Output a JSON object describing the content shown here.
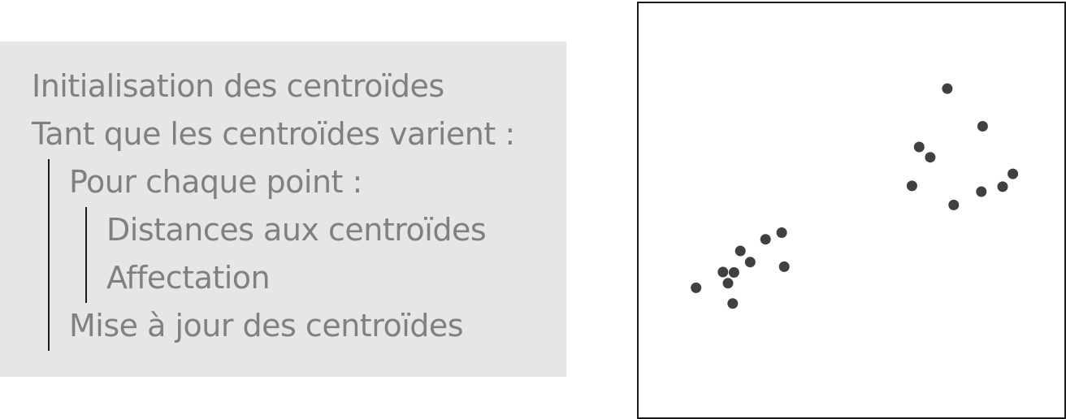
{
  "algorithm": {
    "lines": [
      "Initialisation des centroïdes",
      "Tant que les centroïdes varient :",
      "Pour chaque point :",
      "Distances aux centroïdes",
      "Affectation",
      "Mise à jour des centroïdes"
    ]
  },
  "colors": {
    "box_background": "#e6e6e6",
    "text": "#808080",
    "points": "#404040"
  },
  "chart_data": {
    "type": "scatter",
    "xlim": [
      0,
      100
    ],
    "ylim": [
      0,
      100
    ],
    "grid": false,
    "points": [
      {
        "x": 72.5,
        "y": 79.4
      },
      {
        "x": 80.8,
        "y": 70.3
      },
      {
        "x": 65.9,
        "y": 65.3
      },
      {
        "x": 68.5,
        "y": 62.8
      },
      {
        "x": 87.9,
        "y": 58.8
      },
      {
        "x": 64.2,
        "y": 55.9
      },
      {
        "x": 85.5,
        "y": 55.7
      },
      {
        "x": 80.5,
        "y": 54.5
      },
      {
        "x": 74.0,
        "y": 51.3
      },
      {
        "x": 33.6,
        "y": 44.6
      },
      {
        "x": 29.8,
        "y": 43.0
      },
      {
        "x": 23.9,
        "y": 40.2
      },
      {
        "x": 26.2,
        "y": 37.5
      },
      {
        "x": 34.2,
        "y": 36.4
      },
      {
        "x": 19.8,
        "y": 35.1
      },
      {
        "x": 22.4,
        "y": 35.0
      },
      {
        "x": 21.0,
        "y": 32.4
      },
      {
        "x": 13.5,
        "y": 31.3
      },
      {
        "x": 22.1,
        "y": 27.5
      }
    ]
  }
}
